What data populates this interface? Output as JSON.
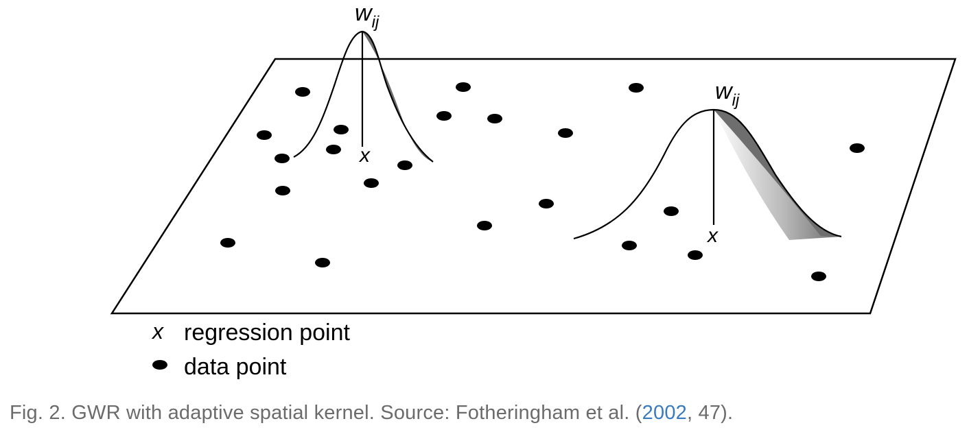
{
  "diagram": {
    "kernel_weight_label": "w",
    "kernel_weight_subscript": "ij",
    "regression_point_symbol": "x",
    "legend": {
      "regression_symbol": "x",
      "regression_label": "regression point",
      "data_label": "data point"
    }
  },
  "caption": {
    "prefix": "Fig. 2. GWR with adaptive spatial kernel. Source: Fotheringham et al. (",
    "link_text": "2002",
    "suffix": ", 47)."
  }
}
